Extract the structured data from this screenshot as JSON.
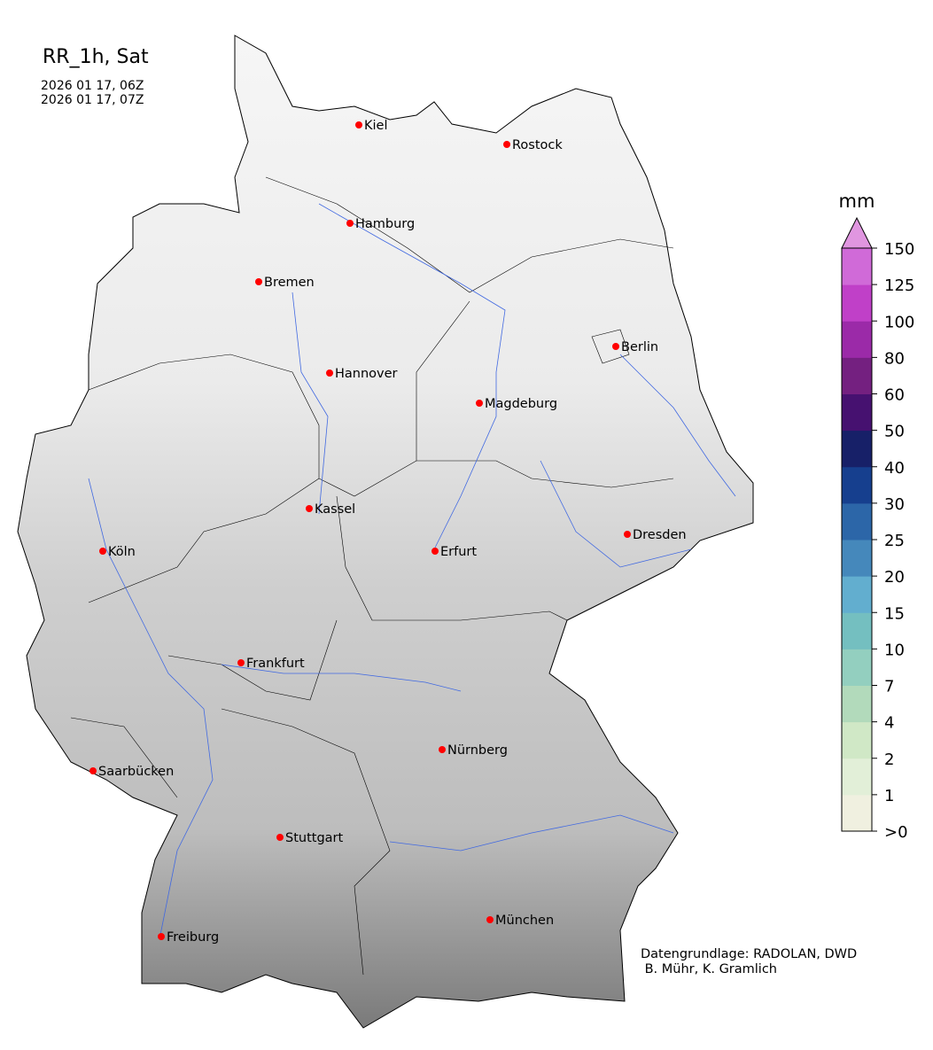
{
  "title": "RR_1h, Sat",
  "time_start": "2026 01 17, 06Z",
  "time_end": "2026 01 17, 07Z",
  "credit_line1": "Datengrundlage: RADOLAN, DWD",
  "credit_line2": " B. Mühr, K. Gramlich",
  "map": {
    "region": "Germany",
    "background": "grayscale terrain relief",
    "features": [
      "state borders",
      "rivers",
      "city markers"
    ],
    "river_color": "#4169e1",
    "city_marker_color": "#ff0000",
    "cities": [
      "Kiel",
      "Rostock",
      "Hamburg",
      "Bremen",
      "Berlin",
      "Hannover",
      "Magdeburg",
      "Kassel",
      "Köln",
      "Erfurt",
      "Dresden",
      "Frankfurt",
      "Nürnberg",
      "Saarbücken",
      "Stuttgart",
      "München",
      "Freiburg"
    ]
  },
  "colorbar": {
    "unit": "mm",
    "extend": "max",
    "tick_labels": [
      ">0",
      "1",
      "2",
      "4",
      "7",
      "10",
      "15",
      "20",
      "25",
      "30",
      "40",
      "50",
      "60",
      "80",
      "100",
      "125",
      "150"
    ],
    "colors": [
      "#f0f0e0",
      "#e2efd8",
      "#d0e8c6",
      "#b2dabb",
      "#93cfbf",
      "#74bfc0",
      "#62aecf",
      "#4588bb",
      "#2c66a8",
      "#163f8e",
      "#172068",
      "#461170",
      "#742080",
      "#9b2aa8",
      "#c040c8",
      "#d06ad8"
    ],
    "extend_color": "#e096e0"
  }
}
